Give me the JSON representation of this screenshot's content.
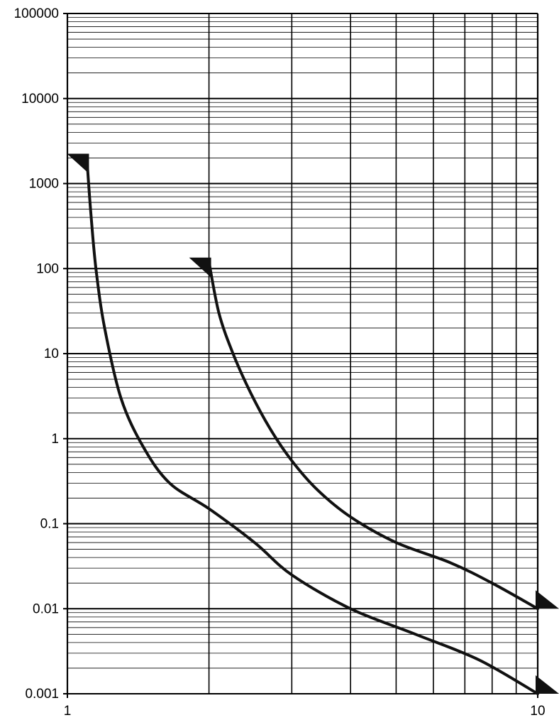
{
  "chart_data": {
    "type": "line",
    "title": "",
    "xlabel": "",
    "ylabel": "",
    "x_scale": "log",
    "y_scale": "log",
    "xlim": [
      1,
      10
    ],
    "ylim": [
      0.001,
      100000
    ],
    "grid": true,
    "x_tick_labels": [
      "1",
      "10"
    ],
    "y_tick_labels": [
      "100000",
      "10000",
      "1000",
      "100",
      "10",
      "1",
      "0.1",
      "0.01",
      "0.001"
    ],
    "series": [
      {
        "x": [
          1.1,
          1.12,
          1.15,
          1.2,
          1.3,
          1.45,
          1.65,
          2.0,
          2.5,
          3.0,
          4.0,
          5.5,
          7.5,
          10.0
        ],
        "y": [
          2000,
          500,
          100,
          20,
          3,
          0.8,
          0.3,
          0.15,
          0.06,
          0.025,
          0.01,
          0.005,
          0.0025,
          0.001
        ],
        "color": "#111111"
      },
      {
        "x": [
          2.0,
          2.1,
          2.25,
          2.45,
          2.7,
          3.0,
          3.4,
          4.0,
          5.0,
          6.5,
          8.0,
          10.0
        ],
        "y": [
          120,
          30,
          10,
          3.5,
          1.3,
          0.55,
          0.25,
          0.12,
          0.06,
          0.035,
          0.02,
          0.01
        ],
        "color": "#111111"
      }
    ]
  }
}
